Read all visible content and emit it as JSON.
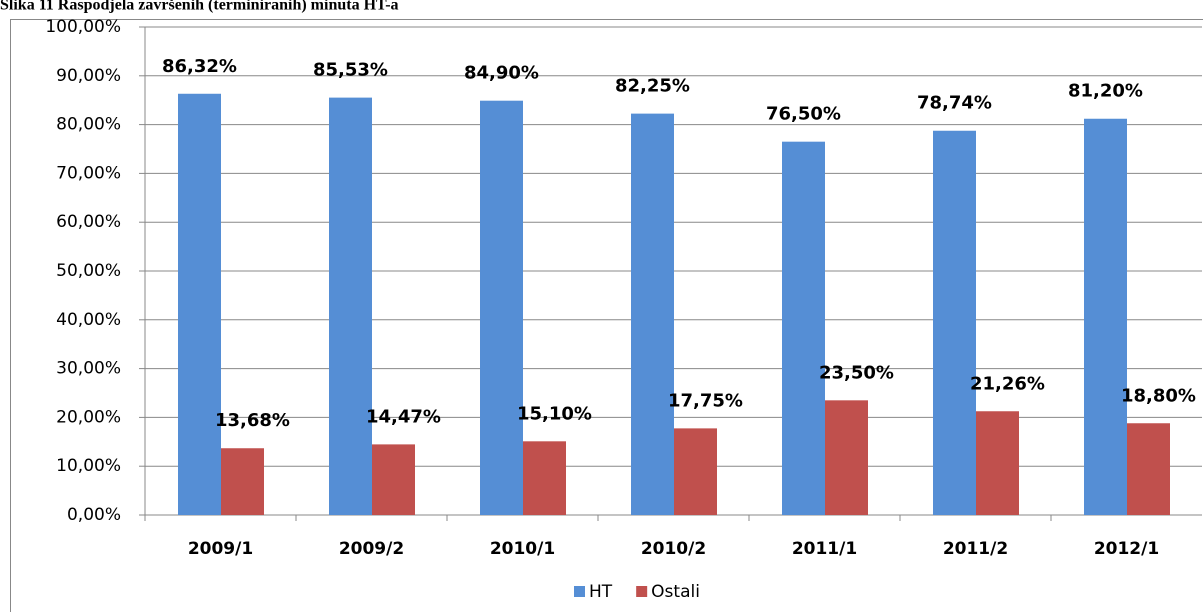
{
  "chart_data": {
    "type": "bar",
    "title": "Slika 11 Raspodjela završenih (terminiranih) minuta HT-a",
    "categories": [
      "2009/1",
      "2009/2",
      "2010/1",
      "2010/2",
      "2011/1",
      "2011/2",
      "2012/1"
    ],
    "series": [
      {
        "name": "HT",
        "color": "#558ed5",
        "values": [
          86.32,
          85.53,
          84.9,
          82.25,
          76.5,
          78.74,
          81.2
        ],
        "value_labels": [
          "86,32%",
          "85,53%",
          "84,90%",
          "82,25%",
          "76,50%",
          "78,74%",
          "81,20%"
        ]
      },
      {
        "name": "Ostali",
        "color": "#c0504d",
        "values": [
          13.68,
          14.47,
          15.1,
          17.75,
          23.5,
          21.26,
          18.8
        ],
        "value_labels": [
          "13,68%",
          "14,47%",
          "15,10%",
          "17,75%",
          "23,50%",
          "21,26%",
          "18,80%"
        ]
      }
    ],
    "ylim": [
      0,
      100
    ],
    "yticks": [
      {
        "value": 0,
        "label": "0,00%"
      },
      {
        "value": 10,
        "label": "10,00%"
      },
      {
        "value": 20,
        "label": "20,00%"
      },
      {
        "value": 30,
        "label": "30,00%"
      },
      {
        "value": 40,
        "label": "40,00%"
      },
      {
        "value": 50,
        "label": "50,00%"
      },
      {
        "value": 60,
        "label": "60,00%"
      },
      {
        "value": 70,
        "label": "70,00%"
      },
      {
        "value": 80,
        "label": "80,00%"
      },
      {
        "value": 90,
        "label": "90,00%"
      },
      {
        "value": 100,
        "label": "100,00%"
      }
    ],
    "grid": true,
    "legend": "bottom"
  }
}
